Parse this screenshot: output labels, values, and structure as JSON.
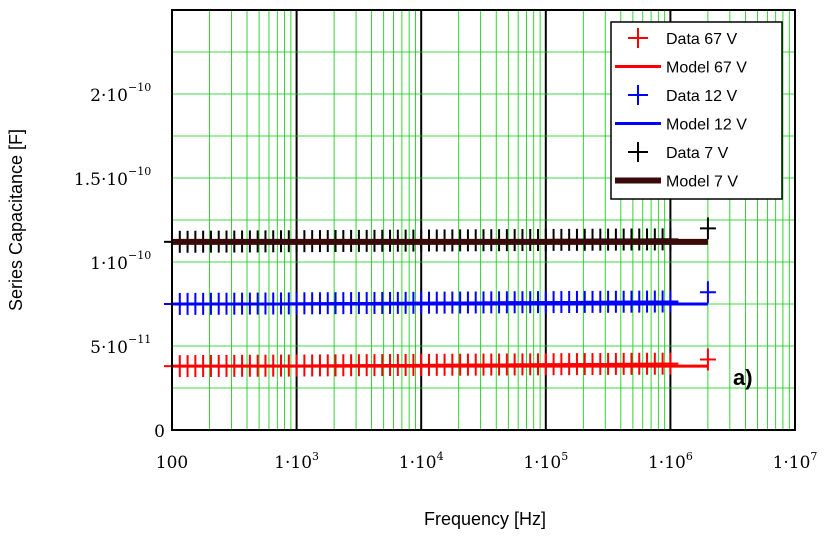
{
  "chart_data": {
    "type": "scatter",
    "title": "",
    "xlabel": "Frequency [Hz]",
    "ylabel": "Series Capacitance [F]",
    "xscale": "log",
    "xlim": [
      100,
      10000000
    ],
    "ylim": [
      0,
      2.5e-10
    ],
    "grid": true,
    "legend_position": "top-right",
    "annotation": "a)",
    "x_ticks": [
      {
        "value": 100,
        "mantissa": "100",
        "exponent": ""
      },
      {
        "value": 1000,
        "mantissa": "1·10",
        "exponent": "3"
      },
      {
        "value": 10000,
        "mantissa": "1·10",
        "exponent": "4"
      },
      {
        "value": 100000,
        "mantissa": "1·10",
        "exponent": "5"
      },
      {
        "value": 1000000,
        "mantissa": "1·10",
        "exponent": "6"
      },
      {
        "value": 10000000,
        "mantissa": "1·10",
        "exponent": "7"
      }
    ],
    "y_ticks": [
      {
        "value": 0,
        "mantissa": "0",
        "exponent": ""
      },
      {
        "value": 5e-11,
        "mantissa": "5·10",
        "exponent": "−11"
      },
      {
        "value": 1e-10,
        "mantissa": "1·10",
        "exponent": "−10"
      },
      {
        "value": 1.5e-10,
        "mantissa": "1.5·10",
        "exponent": "−10"
      },
      {
        "value": 2e-10,
        "mantissa": "2·10",
        "exponent": "−10"
      }
    ],
    "series": [
      {
        "name": "Data 67 V",
        "kind": "data",
        "color": "#ff0000",
        "x_start": 100,
        "x_end": 1000000,
        "points_per_decade": 16,
        "y": 3.8e-11,
        "y_rise": 1.5e-12,
        "last_point": {
          "x": 2000000,
          "y": 4.2e-11
        }
      },
      {
        "name": "Model 67 V",
        "kind": "model",
        "color": "#ff0000",
        "x_start": 100,
        "x_end": 2000000,
        "y": 3.8e-11,
        "stroke": 3
      },
      {
        "name": "Data 12 V",
        "kind": "data",
        "color": "#0000ff",
        "x_start": 100,
        "x_end": 1000000,
        "points_per_decade": 16,
        "y": 7.5e-11,
        "y_rise": 1.5e-12,
        "last_point": {
          "x": 2000000,
          "y": 8.2e-11
        }
      },
      {
        "name": "Model 12 V",
        "kind": "model",
        "color": "#0000ff",
        "x_start": 100,
        "x_end": 2000000,
        "y": 7.5e-11,
        "stroke": 3
      },
      {
        "name": "Data 7 V",
        "kind": "data",
        "color": "#000000",
        "x_start": 100,
        "x_end": 1000000,
        "points_per_decade": 16,
        "y": 1.12e-10,
        "y_rise": 1.5e-12,
        "last_point": {
          "x": 2000000,
          "y": 1.2e-10
        }
      },
      {
        "name": "Model 7 V",
        "kind": "model",
        "color": "#3a0a0a",
        "x_start": 100,
        "x_end": 2000000,
        "y": 1.12e-10,
        "stroke": 6
      }
    ]
  }
}
